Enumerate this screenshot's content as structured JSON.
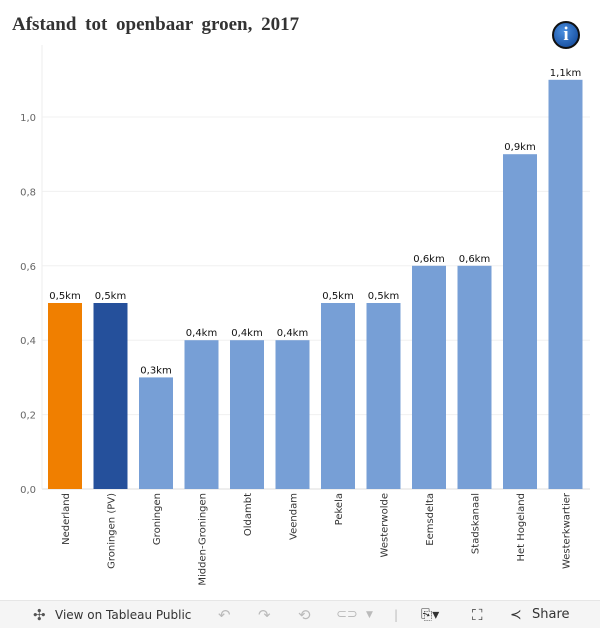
{
  "title": "Afstand tot openbaar groen, 2017",
  "info_icon": "info-icon",
  "chart_data": {
    "type": "bar",
    "title": "Afstand tot openbaar groen, 2017",
    "categories": [
      "Nederland",
      "Groningen (PV)",
      "Groningen",
      "Midden-Groningen",
      "Oldambt",
      "Veendam",
      "Pekela",
      "Westerwolde",
      "Eemsdelta",
      "Stadskanaal",
      "Het Hogeland",
      "Westerkwartier"
    ],
    "values": [
      0.5,
      0.5,
      0.3,
      0.4,
      0.4,
      0.4,
      0.5,
      0.5,
      0.6,
      0.6,
      0.9,
      1.1
    ],
    "data_labels": [
      "0,5km",
      "0,5km",
      "0,3km",
      "0,4km",
      "0,4km",
      "0,4km",
      "0,5km",
      "0,5km",
      "0,6km",
      "0,6km",
      "0,9km",
      "1,1km"
    ],
    "colors": [
      "#f07f00",
      "#25509b",
      "#779fd6",
      "#779fd6",
      "#779fd6",
      "#779fd6",
      "#779fd6",
      "#779fd6",
      "#779fd6",
      "#779fd6",
      "#779fd6",
      "#779fd6"
    ],
    "yticks": [
      "0,0",
      "0,2",
      "0,4",
      "0,6",
      "0,8",
      "1,0"
    ],
    "ylim": [
      0,
      1.2
    ],
    "grid": true,
    "xlabel": "",
    "ylabel": ""
  },
  "toolbar": {
    "view_label": "View on Tableau Public",
    "share_label": "Share"
  }
}
